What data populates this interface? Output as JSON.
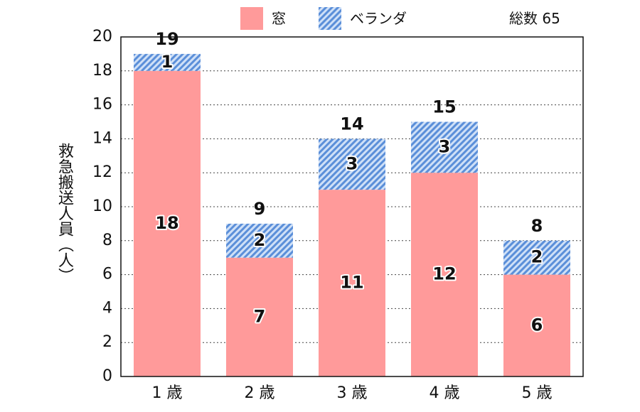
{
  "chart_data": {
    "type": "bar",
    "stacked": true,
    "categories": [
      "1 歳",
      "2 歳",
      "3 歳",
      "4 歳",
      "5 歳"
    ],
    "series": [
      {
        "name": "窓",
        "values": [
          18,
          7,
          11,
          12,
          6
        ],
        "color": "#ff9a9a",
        "pattern": "solid"
      },
      {
        "name": "ベランダ",
        "values": [
          1,
          2,
          3,
          3,
          2
        ],
        "color": "#5b8fd9",
        "pattern": "diagonal-hatch"
      }
    ],
    "totals": [
      19,
      9,
      14,
      15,
      8
    ],
    "ylabel": "救急搬送人員（人）",
    "ylim": [
      0,
      20
    ],
    "yticks": [
      0,
      2,
      4,
      6,
      8,
      10,
      12,
      14,
      16,
      18,
      20
    ],
    "grid": true,
    "legend_position": "top",
    "annotation": "総数 65"
  }
}
